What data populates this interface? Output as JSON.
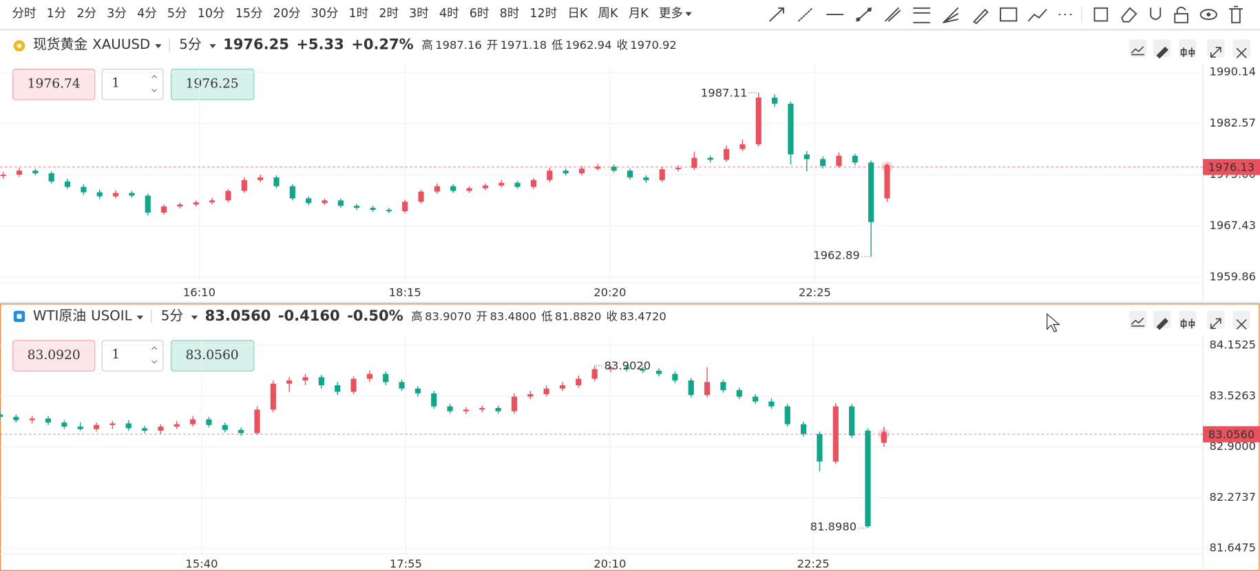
{
  "toolbar": {
    "intervals": [
      "分时",
      "1分",
      "2分",
      "3分",
      "4分",
      "5分",
      "10分",
      "15分",
      "20分",
      "30分",
      "1时",
      "2时",
      "3时",
      "4时",
      "6时",
      "8时",
      "12时",
      "日K",
      "周K",
      "月K"
    ],
    "active": 5,
    "more": "更多"
  },
  "panels": [
    {
      "name": "现货黄金",
      "symbol": "XAUUSD",
      "interval": "5分",
      "price": "1976.25",
      "change": "+5.33",
      "change_pct": "+0.27%",
      "trend_color": "#e8525f",
      "stats": [
        {
          "label": "高",
          "value": "1987.16",
          "color": "#e8525f"
        },
        {
          "label": "开",
          "value": "1971.18",
          "color": "#e8525f"
        },
        {
          "label": "低",
          "value": "1962.94",
          "color": "#11a58a"
        },
        {
          "label": "收",
          "value": "1970.92",
          "color": "#555555"
        }
      ],
      "order": {
        "sell": "1976.74",
        "quantity": "1",
        "buy": "1976.25"
      }
    },
    {
      "name": "WTI原油",
      "symbol": "USOIL",
      "interval": "5分",
      "price": "83.0560",
      "change": "-0.4160",
      "change_pct": "-0.50%",
      "trend_color": "#11a58a",
      "stats": [
        {
          "label": "高",
          "value": "83.9070",
          "color": "#e8525f"
        },
        {
          "label": "开",
          "value": "83.4800",
          "color": "#e8525f"
        },
        {
          "label": "低",
          "value": "81.8820",
          "color": "#11a58a"
        },
        {
          "label": "收",
          "value": "83.4720",
          "color": "#555555"
        }
      ],
      "order": {
        "sell": "83.0920",
        "quantity": "1",
        "buy": "83.0560"
      }
    }
  ],
  "chart_data": [
    {
      "type": "candlestick",
      "up_color": "#e8525f",
      "down_color": "#11a58a",
      "grid": true,
      "ylim": [
        1959.03,
        1990.97
      ],
      "yticks": [
        1990.14,
        1982.57,
        {
          "value": 1975,
          "label": "1975.00"
        },
        1967.43,
        1959.86
      ],
      "xticks": [
        "16:10",
        "18:15",
        "20:20",
        "22:25"
      ],
      "last_price": 1976.13,
      "high_label": "1987.11",
      "low_label": "1962.89",
      "candles": [
        [
          1974.8,
          1975.4,
          1974.4,
          1975.0
        ],
        [
          1975.0,
          1976.0,
          1974.7,
          1975.6
        ],
        [
          1975.6,
          1975.9,
          1974.9,
          1975.2
        ],
        [
          1975.2,
          1975.5,
          1973.7,
          1974.0
        ],
        [
          1974.0,
          1974.4,
          1972.9,
          1973.2
        ],
        [
          1973.2,
          1973.6,
          1972.0,
          1972.4
        ],
        [
          1972.4,
          1972.8,
          1971.4,
          1971.8
        ],
        [
          1971.8,
          1972.7,
          1971.5,
          1972.3
        ],
        [
          1972.3,
          1972.6,
          1971.6,
          1971.9
        ],
        [
          1971.9,
          1972.2,
          1969.0,
          1969.4
        ],
        [
          1969.4,
          1970.6,
          1969.1,
          1970.3
        ],
        [
          1970.3,
          1970.9,
          1970.0,
          1970.6
        ],
        [
          1970.6,
          1971.2,
          1970.3,
          1970.9
        ],
        [
          1970.9,
          1971.6,
          1970.6,
          1971.2
        ],
        [
          1971.2,
          1972.9,
          1970.9,
          1972.6
        ],
        [
          1972.6,
          1974.6,
          1972.3,
          1974.2
        ],
        [
          1974.2,
          1975.0,
          1973.9,
          1974.6
        ],
        [
          1974.6,
          1974.9,
          1973.0,
          1973.3
        ],
        [
          1973.3,
          1973.6,
          1971.2,
          1971.5
        ],
        [
          1971.5,
          1971.8,
          1970.5,
          1970.8
        ],
        [
          1970.8,
          1971.5,
          1970.5,
          1971.2
        ],
        [
          1971.2,
          1971.5,
          1970.1,
          1970.4
        ],
        [
          1970.4,
          1970.7,
          1969.8,
          1970.1
        ],
        [
          1970.1,
          1970.4,
          1969.5,
          1969.8
        ],
        [
          1969.8,
          1970.1,
          1969.3,
          1969.6
        ],
        [
          1969.6,
          1971.3,
          1969.3,
          1971.0
        ],
        [
          1971.0,
          1972.8,
          1970.7,
          1972.5
        ],
        [
          1972.5,
          1973.7,
          1972.2,
          1973.3
        ],
        [
          1973.3,
          1973.6,
          1972.3,
          1972.6
        ],
        [
          1972.6,
          1973.3,
          1972.3,
          1973.0
        ],
        [
          1973.0,
          1973.7,
          1972.7,
          1973.4
        ],
        [
          1973.4,
          1974.2,
          1973.1,
          1973.8
        ],
        [
          1973.8,
          1974.1,
          1972.9,
          1973.2
        ],
        [
          1973.2,
          1974.5,
          1972.9,
          1974.2
        ],
        [
          1974.2,
          1976.0,
          1973.9,
          1975.6
        ],
        [
          1975.6,
          1975.9,
          1974.9,
          1975.2
        ],
        [
          1975.2,
          1976.3,
          1974.9,
          1975.9
        ],
        [
          1975.9,
          1976.6,
          1975.6,
          1976.2
        ],
        [
          1976.2,
          1976.5,
          1975.3,
          1975.6
        ],
        [
          1975.6,
          1975.9,
          1974.3,
          1974.6
        ],
        [
          1974.6,
          1974.9,
          1973.8,
          1974.2
        ],
        [
          1974.2,
          1976.2,
          1973.9,
          1975.8
        ],
        [
          1975.8,
          1976.4,
          1975.5,
          1976.0
        ],
        [
          1976.0,
          1978.4,
          1975.7,
          1977.5
        ],
        [
          1977.5,
          1977.8,
          1976.8,
          1977.2
        ],
        [
          1977.2,
          1979.3,
          1976.9,
          1978.8
        ],
        [
          1978.8,
          1980.2,
          1978.5,
          1979.5
        ],
        [
          1979.5,
          1987.11,
          1979.2,
          1986.4
        ],
        [
          1986.4,
          1986.9,
          1985.0,
          1985.5
        ],
        [
          1985.5,
          1985.8,
          1976.5,
          1978.0
        ],
        [
          1978.0,
          1978.5,
          1975.5,
          1977.3
        ],
        [
          1977.3,
          1977.7,
          1975.9,
          1976.3
        ],
        [
          1976.3,
          1978.3,
          1976.0,
          1977.8
        ],
        [
          1977.8,
          1978.1,
          1976.4,
          1976.8
        ],
        [
          1976.8,
          1977.1,
          1962.89,
          1968.0
        ],
        [
          1971.5,
          1976.6,
          1971.0,
          1976.13
        ]
      ]
    },
    {
      "type": "candlestick",
      "up_color": "#e8525f",
      "down_color": "#11a58a",
      "grid": true,
      "ylim": [
        81.578,
        84.252
      ],
      "yticks": [
        84.1525,
        83.5263,
        {
          "value": 82.9,
          "label": "82.9000"
        },
        82.2737,
        81.6475
      ],
      "xticks": [
        "15:40",
        "17:55",
        "20:10",
        "22:25"
      ],
      "last_price": {
        "value": 83.056,
        "label": "83.0560"
      },
      "high_label": "83.9020",
      "low_label": "81.8980",
      "candles": [
        [
          83.3,
          83.33,
          83.24,
          83.27
        ],
        [
          83.27,
          83.3,
          83.2,
          83.23
        ],
        [
          83.23,
          83.28,
          83.19,
          83.25
        ],
        [
          83.25,
          83.28,
          83.17,
          83.2
        ],
        [
          83.2,
          83.23,
          83.12,
          83.15
        ],
        [
          83.15,
          83.2,
          83.1,
          83.12
        ],
        [
          83.12,
          83.2,
          83.09,
          83.17
        ],
        [
          83.17,
          83.22,
          83.12,
          83.19
        ],
        [
          83.19,
          83.23,
          83.1,
          83.13
        ],
        [
          83.13,
          83.16,
          83.07,
          83.1
        ],
        [
          83.1,
          83.18,
          83.06,
          83.15
        ],
        [
          83.15,
          83.22,
          83.12,
          83.18
        ],
        [
          83.18,
          83.28,
          83.15,
          83.24
        ],
        [
          83.24,
          83.27,
          83.14,
          83.17
        ],
        [
          83.17,
          83.2,
          83.08,
          83.11
        ],
        [
          83.11,
          83.14,
          83.04,
          83.07
        ],
        [
          83.07,
          83.4,
          83.05,
          83.36
        ],
        [
          83.36,
          83.72,
          83.33,
          83.68
        ],
        [
          83.68,
          83.76,
          83.58,
          83.72
        ],
        [
          83.72,
          83.8,
          83.66,
          83.76
        ],
        [
          83.76,
          83.79,
          83.62,
          83.66
        ],
        [
          83.66,
          83.7,
          83.54,
          83.58
        ],
        [
          83.58,
          83.77,
          83.55,
          83.74
        ],
        [
          83.74,
          83.84,
          83.7,
          83.8
        ],
        [
          83.8,
          83.83,
          83.66,
          83.7
        ],
        [
          83.7,
          83.73,
          83.59,
          83.62
        ],
        [
          83.62,
          83.65,
          83.52,
          83.56
        ],
        [
          83.56,
          83.59,
          83.37,
          83.4
        ],
        [
          83.4,
          83.43,
          83.31,
          83.34
        ],
        [
          83.34,
          83.39,
          83.31,
          83.36
        ],
        [
          83.36,
          83.41,
          83.33,
          83.38
        ],
        [
          83.38,
          83.41,
          83.31,
          83.34
        ],
        [
          83.34,
          83.56,
          83.31,
          83.52
        ],
        [
          83.52,
          83.59,
          83.49,
          83.55
        ],
        [
          83.55,
          83.66,
          83.52,
          83.62
        ],
        [
          83.62,
          83.7,
          83.59,
          83.66
        ],
        [
          83.66,
          83.78,
          83.63,
          83.74
        ],
        [
          83.74,
          83.902,
          83.71,
          83.86
        ],
        [
          83.86,
          83.9,
          83.82,
          83.88
        ],
        [
          83.88,
          83.9,
          83.83,
          83.86
        ],
        [
          83.86,
          83.89,
          83.81,
          83.84
        ],
        [
          83.84,
          83.87,
          83.77,
          83.8
        ],
        [
          83.8,
          83.83,
          83.69,
          83.72
        ],
        [
          83.72,
          83.75,
          83.51,
          83.54
        ],
        [
          83.54,
          83.88,
          83.51,
          83.7
        ],
        [
          83.7,
          83.73,
          83.57,
          83.6
        ],
        [
          83.6,
          83.63,
          83.49,
          83.52
        ],
        [
          83.52,
          83.55,
          83.43,
          83.46
        ],
        [
          83.46,
          83.5,
          83.37,
          83.4
        ],
        [
          83.4,
          83.43,
          83.15,
          83.18
        ],
        [
          83.18,
          83.21,
          83.03,
          83.06
        ],
        [
          83.06,
          83.09,
          82.6,
          82.72
        ],
        [
          82.72,
          83.44,
          82.69,
          83.4
        ],
        [
          83.4,
          83.43,
          83.01,
          83.04
        ],
        [
          83.1,
          83.13,
          81.898,
          81.92
        ],
        [
          82.95,
          83.15,
          82.9,
          83.056
        ]
      ]
    }
  ]
}
